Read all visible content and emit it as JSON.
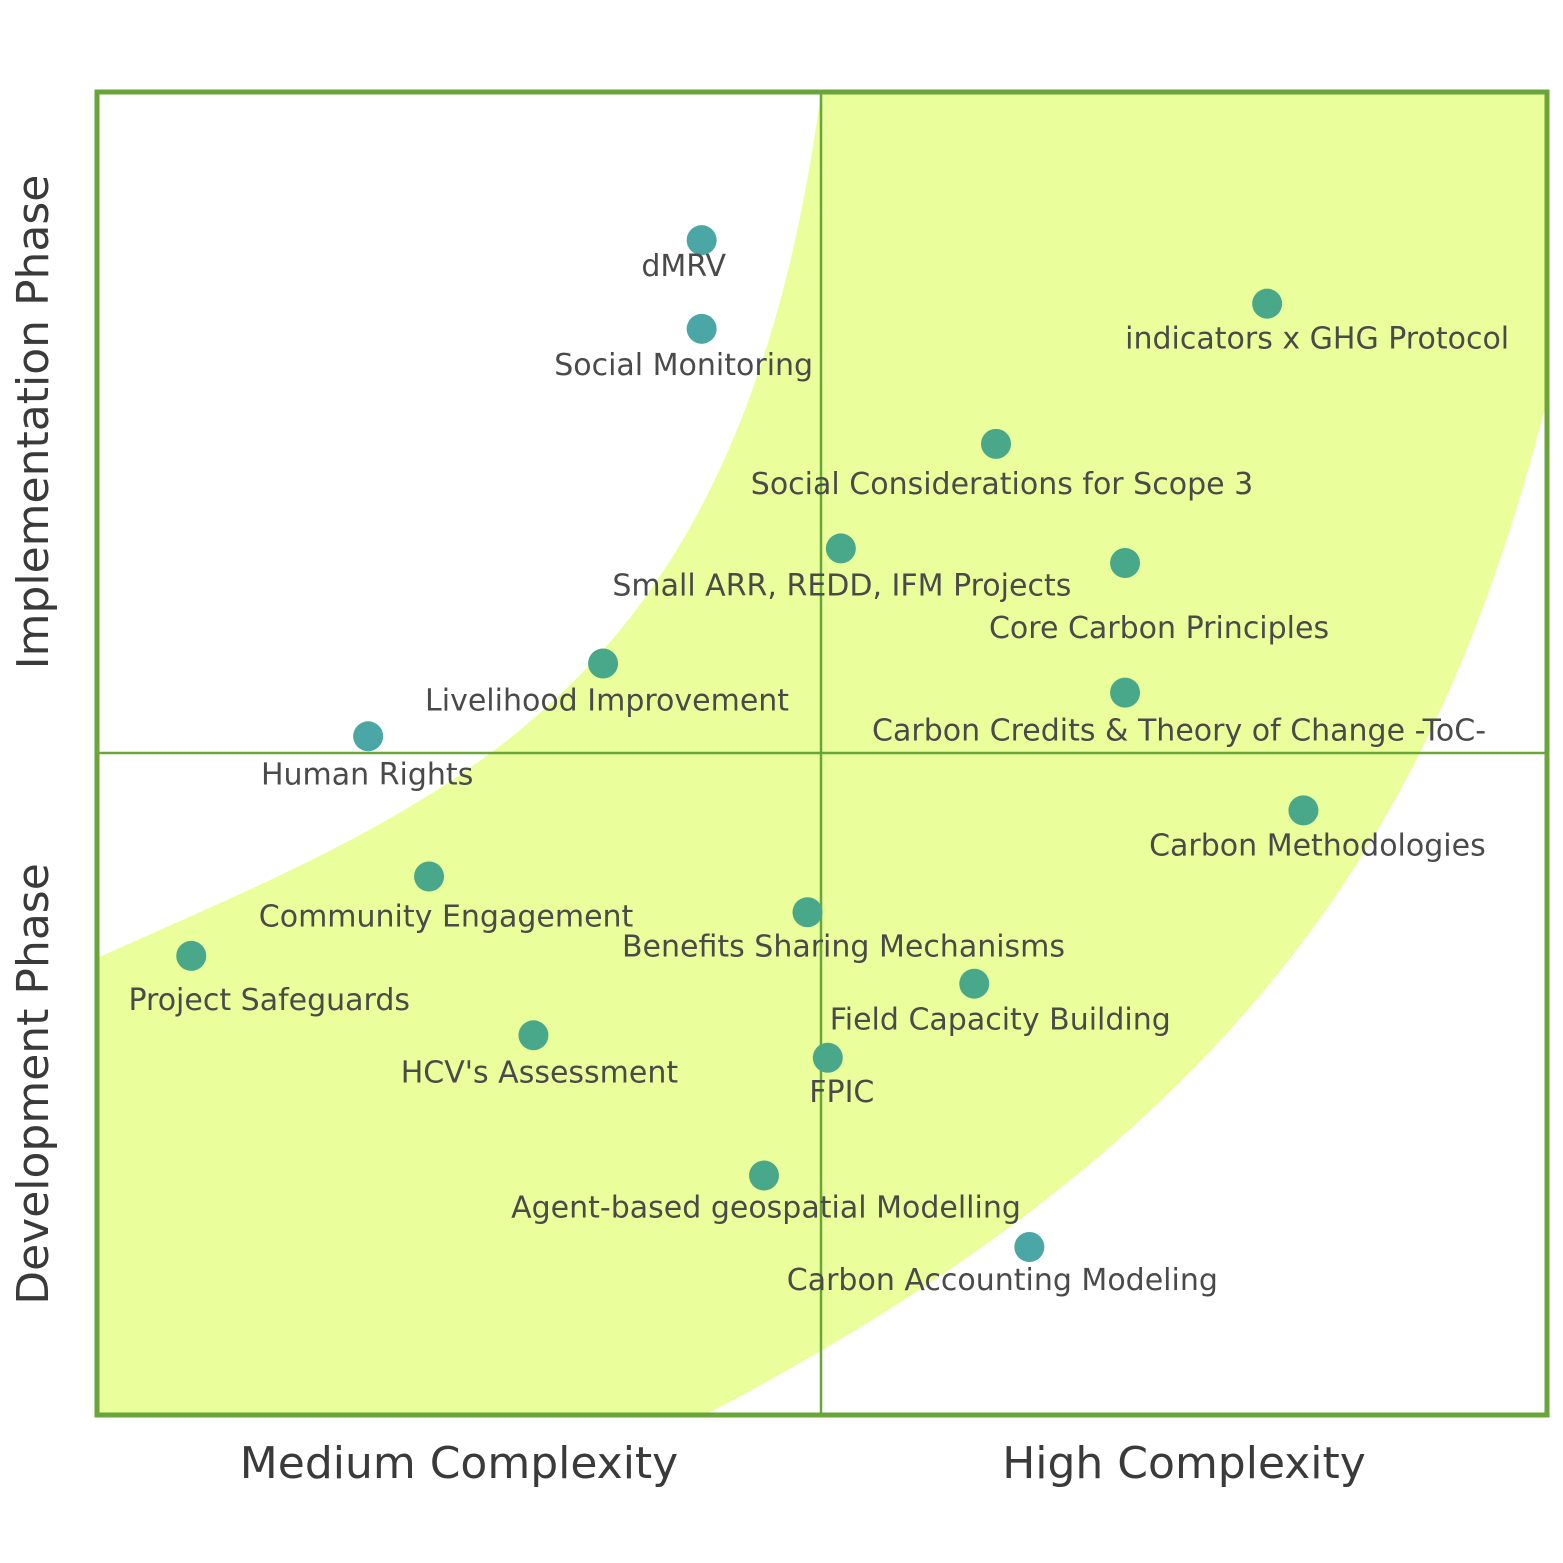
{
  "chart_data": {
    "type": "scatter",
    "title": "",
    "x_axis_labels": [
      "Medium Complexity",
      "High Complexity"
    ],
    "y_axis_labels": [
      "Implementation Phase",
      "Development Phase"
    ],
    "xlim": [
      0,
      100
    ],
    "ylim": [
      0,
      100
    ],
    "grid": false,
    "colors": {
      "frame": "#6aa53a",
      "band": "#eaff9b",
      "point_green": "#4aa88a",
      "point_teal": "#4ba6a6",
      "label": "#4a4a4a"
    },
    "points": [
      {
        "name": "dMRV",
        "x": 41.7,
        "y": 88.8,
        "tone": "teal"
      },
      {
        "name": "Social Monitoring",
        "x": 41.7,
        "y": 82.1,
        "tone": "teal"
      },
      {
        "name": "indicators x GHG Protocol",
        "x": 80.7,
        "y": 84.0,
        "tone": "green"
      },
      {
        "name": "Social Considerations for Scope 3",
        "x": 62.0,
        "y": 73.4,
        "tone": "green"
      },
      {
        "name": "Small ARR, REDD, IFM Projects",
        "x": 51.3,
        "y": 65.5,
        "tone": "green"
      },
      {
        "name": "Core Carbon Principles",
        "x": 70.9,
        "y": 64.4,
        "tone": "green"
      },
      {
        "name": "Livelihood Improvement",
        "x": 34.9,
        "y": 56.8,
        "tone": "green"
      },
      {
        "name": "Carbon Credits & Theory of Change -ToC-",
        "x": 70.9,
        "y": 54.6,
        "tone": "green"
      },
      {
        "name": "Human Rights",
        "x": 18.7,
        "y": 51.3,
        "tone": "teal"
      },
      {
        "name": "Carbon Methodologies",
        "x": 83.2,
        "y": 45.7,
        "tone": "green"
      },
      {
        "name": "Community Engagement",
        "x": 22.9,
        "y": 40.7,
        "tone": "green"
      },
      {
        "name": "Benefits Sharing Mechanisms",
        "x": 49.0,
        "y": 38.0,
        "tone": "green"
      },
      {
        "name": "Project Safeguards",
        "x": 6.5,
        "y": 34.7,
        "tone": "green"
      },
      {
        "name": "Field Capacity Building",
        "x": 60.5,
        "y": 32.6,
        "tone": "green"
      },
      {
        "name": "HCV's Assessment",
        "x": 30.1,
        "y": 28.7,
        "tone": "green"
      },
      {
        "name": "FPIC",
        "x": 50.4,
        "y": 27.0,
        "tone": "green"
      },
      {
        "name": "Agent-based geospatial Modelling",
        "x": 46.0,
        "y": 18.1,
        "tone": "green"
      },
      {
        "name": "Carbon Accounting Modeling",
        "x": 64.3,
        "y": 12.7,
        "tone": "teal"
      }
    ]
  }
}
